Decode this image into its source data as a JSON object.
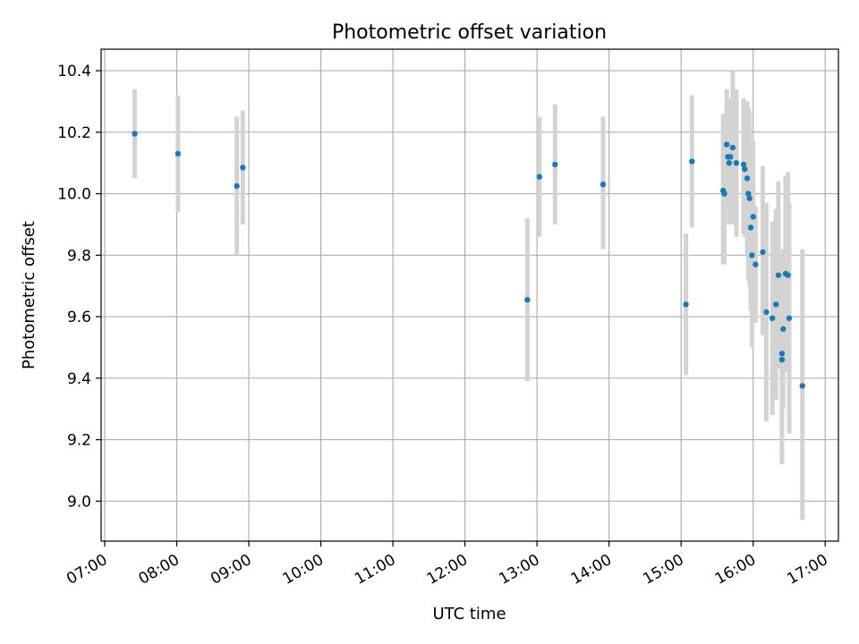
{
  "chart_data": {
    "type": "scatter",
    "title": "Photometric offset variation",
    "xlabel": "UTC time",
    "ylabel": "Photometric offset",
    "xlim": [
      "06:57",
      "17:11"
    ],
    "ylim": [
      8.87,
      10.47
    ],
    "x_ticks": [
      "07:00",
      "08:00",
      "09:00",
      "10:00",
      "11:00",
      "12:00",
      "13:00",
      "14:00",
      "15:00",
      "16:00",
      "17:00"
    ],
    "y_ticks": [
      9.0,
      9.2,
      9.4,
      9.6,
      9.8,
      10.0,
      10.2,
      10.4
    ],
    "y_tick_labels": [
      "9.0",
      "9.2",
      "9.4",
      "9.6",
      "9.8",
      "10.0",
      "10.2",
      "10.4"
    ],
    "grid": true,
    "colors": {
      "point": "#1f77b4",
      "errorbar": "#d3d3d3",
      "grid": "#b0b0b0"
    },
    "series": [
      {
        "points": [
          {
            "x": "07:25",
            "y": 10.195,
            "ylo": 10.05,
            "yhi": 10.34
          },
          {
            "x": "08:01",
            "y": 10.13,
            "ylo": 9.94,
            "yhi": 10.32
          },
          {
            "x": "08:50",
            "y": 10.025,
            "ylo": 9.8,
            "yhi": 10.25
          },
          {
            "x": "08:55",
            "y": 10.085,
            "ylo": 9.9,
            "yhi": 10.27
          },
          {
            "x": "12:52",
            "y": 9.655,
            "ylo": 9.39,
            "yhi": 9.92
          },
          {
            "x": "13:02",
            "y": 10.055,
            "ylo": 9.86,
            "yhi": 10.25
          },
          {
            "x": "13:15",
            "y": 10.095,
            "ylo": 9.9,
            "yhi": 10.29
          },
          {
            "x": "13:55",
            "y": 10.03,
            "ylo": 9.82,
            "yhi": 10.25
          },
          {
            "x": "15:04",
            "y": 9.64,
            "ylo": 9.41,
            "yhi": 9.87
          },
          {
            "x": "15:09",
            "y": 10.105,
            "ylo": 9.89,
            "yhi": 10.32
          },
          {
            "x": "15:35",
            "y": 10.01,
            "ylo": 9.77,
            "yhi": 10.26
          },
          {
            "x": "15:36",
            "y": 10.0,
            "ylo": 9.77,
            "yhi": 10.23
          },
          {
            "x": "15:38",
            "y": 10.16,
            "ylo": 9.98,
            "yhi": 10.34
          },
          {
            "x": "15:39",
            "y": 10.12,
            "ylo": 9.94,
            "yhi": 10.3
          },
          {
            "x": "15:40",
            "y": 10.1,
            "ylo": 9.9,
            "yhi": 10.3
          },
          {
            "x": "15:41",
            "y": 10.12,
            "ylo": 9.95,
            "yhi": 10.31
          },
          {
            "x": "15:43",
            "y": 10.15,
            "ylo": 9.9,
            "yhi": 10.4
          },
          {
            "x": "15:46",
            "y": 10.1,
            "ylo": 9.86,
            "yhi": 10.34
          },
          {
            "x": "15:52",
            "y": 10.095,
            "ylo": 9.87,
            "yhi": 10.31
          },
          {
            "x": "15:53",
            "y": 10.08,
            "ylo": 9.86,
            "yhi": 10.3
          },
          {
            "x": "15:55",
            "y": 10.05,
            "ylo": 9.8,
            "yhi": 10.3
          },
          {
            "x": "15:56",
            "y": 10.0,
            "ylo": 9.72,
            "yhi": 10.28
          },
          {
            "x": "15:57",
            "y": 9.985,
            "ylo": 9.7,
            "yhi": 10.27
          },
          {
            "x": "15:58",
            "y": 9.89,
            "ylo": 9.62,
            "yhi": 10.16
          },
          {
            "x": "15:59",
            "y": 9.8,
            "ylo": 9.5,
            "yhi": 10.1
          },
          {
            "x": "16:00",
            "y": 9.925,
            "ylo": 9.68,
            "yhi": 10.17
          },
          {
            "x": "16:02",
            "y": 9.77,
            "ylo": 9.58,
            "yhi": 9.96
          },
          {
            "x": "16:08",
            "y": 9.81,
            "ylo": 9.54,
            "yhi": 10.09
          },
          {
            "x": "16:11",
            "y": 9.615,
            "ylo": 9.26,
            "yhi": 9.97
          },
          {
            "x": "16:16",
            "y": 9.595,
            "ylo": 9.28,
            "yhi": 9.91
          },
          {
            "x": "16:19",
            "y": 9.64,
            "ylo": 9.33,
            "yhi": 9.95
          },
          {
            "x": "16:21",
            "y": 9.735,
            "ylo": 9.43,
            "yhi": 10.04
          },
          {
            "x": "16:24",
            "y": 9.48,
            "ylo": 9.22,
            "yhi": 9.74
          },
          {
            "x": "16:24",
            "y": 9.46,
            "ylo": 9.12,
            "yhi": 9.8
          },
          {
            "x": "16:25",
            "y": 9.56,
            "ylo": 9.3,
            "yhi": 9.82
          },
          {
            "x": "16:27",
            "y": 9.74,
            "ylo": 9.42,
            "yhi": 10.06
          },
          {
            "x": "16:29",
            "y": 9.735,
            "ylo": 9.43,
            "yhi": 10.07
          },
          {
            "x": "16:30",
            "y": 9.595,
            "ylo": 9.22,
            "yhi": 9.97
          },
          {
            "x": "16:41",
            "y": 9.375,
            "ylo": 8.94,
            "yhi": 9.82
          }
        ]
      }
    ]
  }
}
